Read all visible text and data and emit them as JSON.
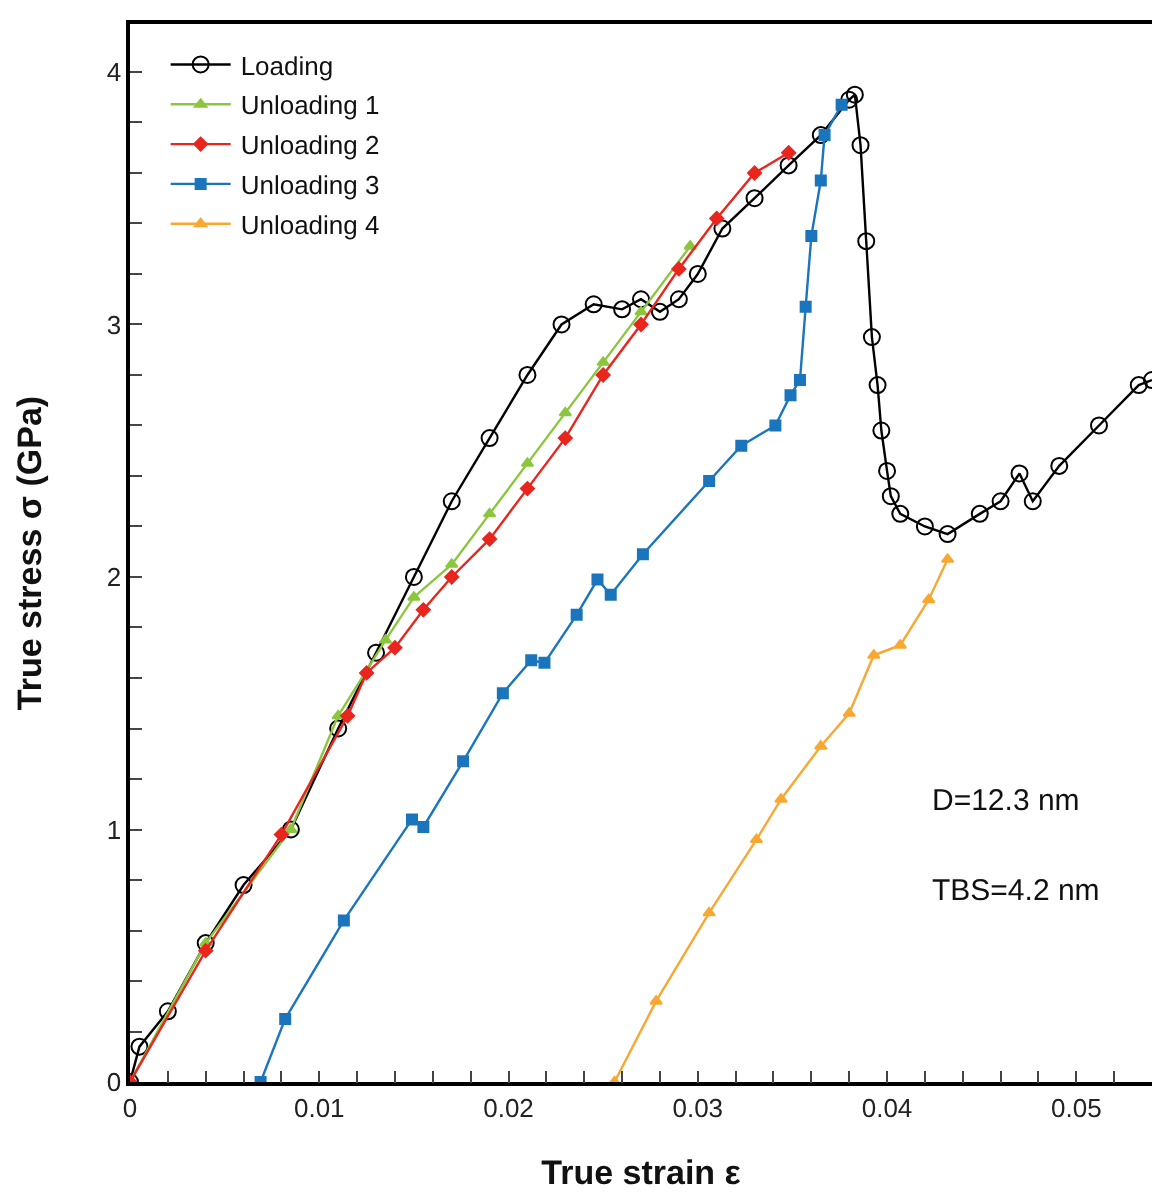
{
  "chart_data": {
    "type": "line",
    "xlabel": "True strain ε",
    "ylabel": "True stress σ (GPa)",
    "xlim": [
      0,
      0.054
    ],
    "ylim": [
      0,
      4.19
    ],
    "xticks": [
      0,
      {
        "value": 0.002,
        "label": null
      },
      {
        "value": 0.004,
        "label": null
      },
      {
        "value": 0.006,
        "label": null
      },
      {
        "value": 0.008,
        "label": null
      },
      0.01,
      {
        "value": 0.012,
        "label": null
      },
      {
        "value": 0.014,
        "label": null
      },
      {
        "value": 0.016,
        "label": null
      },
      {
        "value": 0.018,
        "label": null
      },
      0.02,
      {
        "value": 0.022,
        "label": null
      },
      {
        "value": 0.024,
        "label": null
      },
      {
        "value": 0.026,
        "label": null
      },
      {
        "value": 0.028,
        "label": null
      },
      0.03,
      {
        "value": 0.032,
        "label": null
      },
      {
        "value": 0.034,
        "label": null
      },
      {
        "value": 0.036,
        "label": null
      },
      {
        "value": 0.038,
        "label": null
      },
      0.04,
      {
        "value": 0.042,
        "label": null
      },
      {
        "value": 0.044,
        "label": null
      },
      {
        "value": 0.046,
        "label": null
      },
      {
        "value": 0.048,
        "label": null
      },
      0.05,
      {
        "value": 0.052,
        "label": null
      }
    ],
    "yticks": [
      0,
      {
        "value": 0.2,
        "label": null
      },
      {
        "value": 0.4,
        "label": null
      },
      {
        "value": 0.6,
        "label": null
      },
      {
        "value": 0.8,
        "label": null
      },
      1,
      {
        "value": 1.2,
        "label": null
      },
      {
        "value": 1.4,
        "label": null
      },
      {
        "value": 1.6,
        "label": null
      },
      {
        "value": 1.8,
        "label": null
      },
      2,
      {
        "value": 2.2,
        "label": null
      },
      {
        "value": 2.4,
        "label": null
      },
      {
        "value": 2.6,
        "label": null
      },
      {
        "value": 2.8,
        "label": null
      },
      3,
      {
        "value": 3.2,
        "label": null
      },
      {
        "value": 3.4,
        "label": null
      },
      {
        "value": 3.6,
        "label": null
      },
      {
        "value": 3.8,
        "label": null
      },
      4
    ],
    "grid": false,
    "legend": "top left",
    "line_style": "solid",
    "annotations": [
      "D=12.3 nm",
      "TBS=4.2 nm"
    ],
    "series": [
      {
        "name": "Loading",
        "color": "#000000",
        "marker": "circle",
        "x": [
          0,
          0.0005,
          0.002,
          0.004,
          0.006,
          0.0085,
          0.011,
          0.013,
          0.015,
          0.017,
          0.019,
          0.021,
          0.0228,
          0.0245,
          0.026,
          0.027,
          0.028,
          0.029,
          0.03,
          0.0313,
          0.033,
          0.0348,
          0.0365,
          0.038,
          0.0383,
          0.0386,
          0.0389,
          0.0392,
          0.0395,
          0.0397,
          0.04,
          0.0402,
          0.0407,
          0.042,
          0.0432,
          0.0449,
          0.046,
          0.047,
          0.0477,
          0.0491,
          0.0512,
          0.0533,
          0.054
        ],
        "values": [
          0,
          0.14,
          0.28,
          0.55,
          0.78,
          1.0,
          1.4,
          1.7,
          2.0,
          2.3,
          2.55,
          2.8,
          3.0,
          3.08,
          3.06,
          3.1,
          3.05,
          3.1,
          3.2,
          3.38,
          3.5,
          3.63,
          3.75,
          3.89,
          3.91,
          3.71,
          3.33,
          2.95,
          2.76,
          2.58,
          2.42,
          2.32,
          2.25,
          2.2,
          2.17,
          2.25,
          2.3,
          2.41,
          2.3,
          2.44,
          2.6,
          2.76,
          2.78
        ]
      },
      {
        "name": "Unloading 1",
        "color": "#8cc63f",
        "marker": "triangle",
        "x": [
          0,
          0.004,
          0.0085,
          0.011,
          0.0135,
          0.015,
          0.017,
          0.019,
          0.021,
          0.023,
          0.025,
          0.027,
          0.0296
        ],
        "values": [
          0,
          0.55,
          1.0,
          1.45,
          1.75,
          1.92,
          2.05,
          2.25,
          2.45,
          2.65,
          2.85,
          3.05,
          3.31
        ]
      },
      {
        "name": "Unloading 2",
        "color": "#e8261e",
        "marker": "diamond",
        "x": [
          0,
          0.004,
          0.008,
          0.0115,
          0.0125,
          0.014,
          0.0155,
          0.017,
          0.019,
          0.021,
          0.023,
          0.025,
          0.027,
          0.029,
          0.031,
          0.033,
          0.0348
        ],
        "values": [
          0,
          0.52,
          0.98,
          1.45,
          1.62,
          1.72,
          1.87,
          2.0,
          2.15,
          2.35,
          2.55,
          2.8,
          3.0,
          3.22,
          3.42,
          3.6,
          3.68
        ]
      },
      {
        "name": "Unloading 3",
        "color": "#1b75bc",
        "marker": "square",
        "x": [
          0.0069,
          0.0082,
          0.0113,
          0.0149,
          0.0155,
          0.0176,
          0.0197,
          0.0212,
          0.0219,
          0.0236,
          0.0247,
          0.0254,
          0.0271,
          0.0306,
          0.0323,
          0.0341,
          0.0349,
          0.0354,
          0.0357,
          0.036,
          0.0365,
          0.0367,
          0.0376
        ],
        "values": [
          0,
          0.25,
          0.64,
          1.04,
          1.01,
          1.27,
          1.54,
          1.67,
          1.66,
          1.85,
          1.99,
          1.93,
          2.09,
          2.38,
          2.52,
          2.6,
          2.72,
          2.78,
          3.07,
          3.35,
          3.57,
          3.75,
          3.87
        ]
      },
      {
        "name": "Unloading 4",
        "color": "#f7a833",
        "marker": "triangle",
        "x": [
          0.0256,
          0.0278,
          0.0306,
          0.0331,
          0.0344,
          0.0365,
          0.038,
          0.0393,
          0.0407,
          0.0422,
          0.0432
        ],
        "values": [
          0,
          0.32,
          0.67,
          0.96,
          1.12,
          1.33,
          1.46,
          1.69,
          1.73,
          1.91,
          2.07
        ]
      }
    ]
  }
}
